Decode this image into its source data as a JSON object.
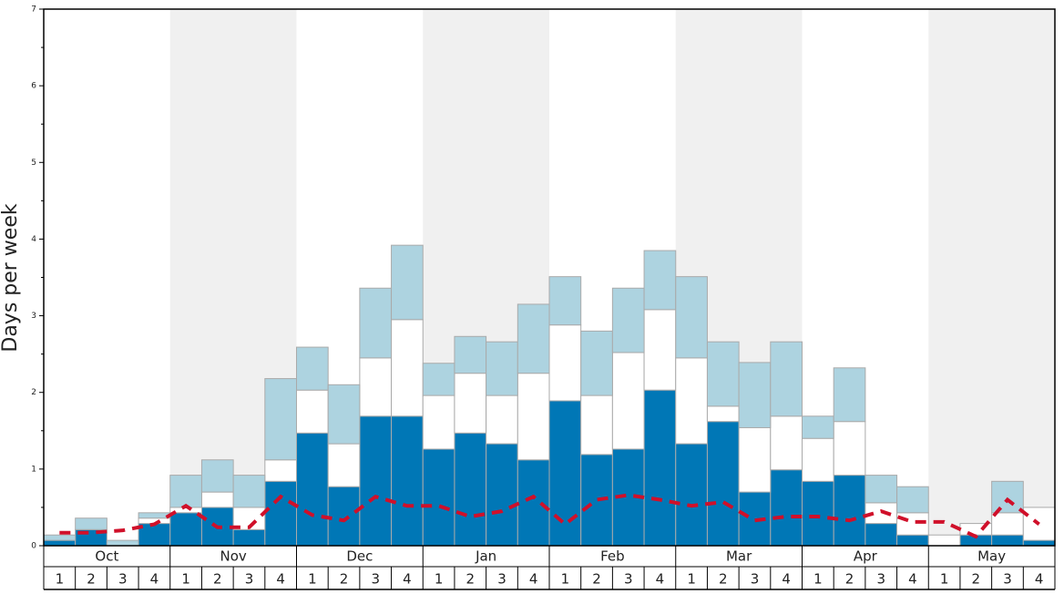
{
  "chart_data": {
    "type": "bar",
    "y_label": "Days per week",
    "months": [
      "Oct",
      "Nov",
      "Dec",
      "Jan",
      "Feb",
      "Mar",
      "Apr",
      "May"
    ],
    "categories": [
      "1",
      "2",
      "3",
      "4",
      "1",
      "2",
      "3",
      "4",
      "1",
      "2",
      "3",
      "4",
      "1",
      "2",
      "3",
      "4",
      "1",
      "2",
      "3",
      "4",
      "1",
      "2",
      "3",
      "4",
      "1",
      "2",
      "3",
      "4",
      "1",
      "2",
      "3",
      "4"
    ],
    "stacked": true,
    "ylim": [
      0,
      7
    ],
    "yticks": [
      0,
      1,
      2,
      3,
      4,
      5,
      6,
      7
    ],
    "series": [
      {
        "color": "#0077b6",
        "values": [
          0.07,
          0.21,
          0,
          0.29,
          0.43,
          0.5,
          0.21,
          0.84,
          1.47,
          0.77,
          1.69,
          1.69,
          1.26,
          1.47,
          1.33,
          1.12,
          1.89,
          1.19,
          1.26,
          2.03,
          1.33,
          1.62,
          0.7,
          0.99,
          0.84,
          0.92,
          0.29,
          0.14,
          0,
          0.14,
          0.14,
          0.07
        ]
      },
      {
        "color": "#ffffff",
        "values": [
          0,
          0,
          0,
          0.07,
          0.07,
          0.2,
          0.29,
          0.28,
          0.56,
          0.56,
          0.76,
          1.26,
          0.7,
          0.78,
          0.63,
          1.13,
          0.99,
          0.77,
          1.26,
          1.05,
          1.12,
          0.2,
          0.84,
          0.7,
          0.56,
          0.7,
          0.27,
          0.29,
          0.14,
          0.15,
          0.29,
          0.43
        ]
      },
      {
        "color": "#add3e0",
        "values": [
          0.07,
          0.15,
          0.07,
          0.07,
          0.42,
          0.42,
          0.42,
          1.06,
          0.56,
          0.77,
          0.91,
          0.97,
          0.42,
          0.48,
          0.7,
          0.9,
          0.63,
          0.84,
          0.84,
          0.77,
          1.06,
          0.84,
          0.85,
          0.97,
          0.29,
          0.7,
          0.36,
          0.34,
          0,
          0,
          0.41,
          0
        ]
      },
      {
        "type": "line",
        "color": "#d0102a",
        "values": [
          0.17,
          0.17,
          0.2,
          0.28,
          0.52,
          0.24,
          0.24,
          0.64,
          0.4,
          0.33,
          0.64,
          0.52,
          0.52,
          0.38,
          0.45,
          0.64,
          0.28,
          0.6,
          0.66,
          0.6,
          0.52,
          0.57,
          0.33,
          0.38,
          0.38,
          0.33,
          0.45,
          0.31,
          0.31,
          0.12,
          0.6,
          0.28
        ]
      }
    ]
  }
}
